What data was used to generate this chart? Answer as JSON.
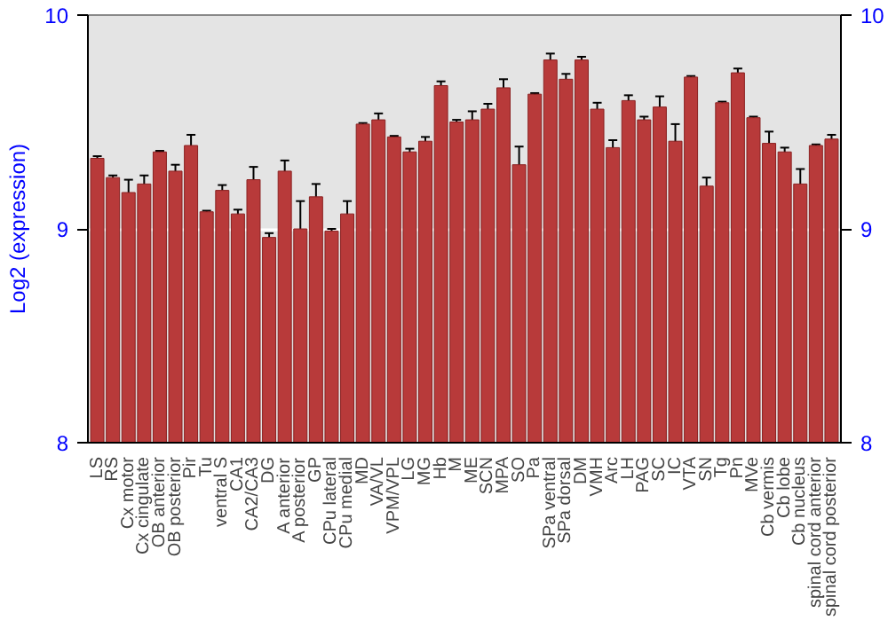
{
  "chart_data": {
    "type": "bar",
    "ylabel": "Log2 (expression)",
    "categories": [
      "LS",
      "RS",
      "Cx motor",
      "Cx cingulate",
      "OB anterior",
      "OB posterior",
      "Pir",
      "Tu",
      "ventral S",
      "CA1",
      "CA2/CA3",
      "DG",
      "A anterior",
      "A posterior",
      "GP",
      "CPu lateral",
      "CPu medial",
      "MD",
      "VA/VL",
      "VPM/VPL",
      "LG",
      "MG",
      "Hb",
      "M",
      "ME",
      "SCN",
      "MPA",
      "SO",
      "Pa",
      "SPa ventral",
      "SPa dorsal",
      "DM",
      "VMH",
      "Arc",
      "LH",
      "PAG",
      "SC",
      "IC",
      "VTA",
      "SN",
      "Tg",
      "Pn",
      "MVe",
      "Cb vermis",
      "Cb lobe",
      "Cb nucleus",
      "spinal cord anterior",
      "spinal cord posterior"
    ],
    "values": [
      9.33,
      9.24,
      9.17,
      9.21,
      9.36,
      9.27,
      9.39,
      9.08,
      9.18,
      9.07,
      9.23,
      8.96,
      9.27,
      9.0,
      9.15,
      8.99,
      9.07,
      9.49,
      9.51,
      9.43,
      9.36,
      9.41,
      9.67,
      9.5,
      9.51,
      9.56,
      9.66,
      9.3,
      9.63,
      9.79,
      9.7,
      9.79,
      9.56,
      9.38,
      9.6,
      9.51,
      9.57,
      9.41,
      9.71,
      9.2,
      9.59,
      9.73,
      9.52,
      9.4,
      9.36,
      9.21,
      9.39,
      9.42
    ],
    "errors": [
      0.01,
      0.01,
      0.06,
      0.04,
      0.005,
      0.03,
      0.05,
      0.005,
      0.025,
      0.02,
      0.06,
      0.02,
      0.05,
      0.13,
      0.06,
      0.01,
      0.06,
      0.005,
      0.03,
      0.005,
      0.015,
      0.02,
      0.02,
      0.01,
      0.04,
      0.025,
      0.04,
      0.085,
      0.005,
      0.03,
      0.025,
      0.015,
      0.03,
      0.035,
      0.025,
      0.015,
      0.05,
      0.08,
      0.005,
      0.04,
      0.005,
      0.02,
      0.005,
      0.055,
      0.02,
      0.07,
      0.005,
      0.02
    ],
    "color": "#b83a3a",
    "ylim": [
      8,
      10
    ],
    "yticks": [
      8,
      9,
      10
    ],
    "y2lim": [
      8,
      10
    ],
    "y2ticks": [
      8,
      9,
      10
    ],
    "grid": "y"
  }
}
